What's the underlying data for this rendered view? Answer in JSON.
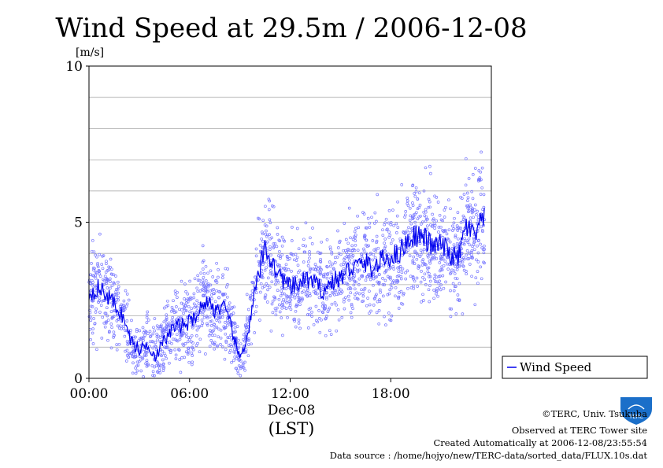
{
  "chart_data": {
    "type": "scatter",
    "title": "Wind Speed at 29.5m / 2006-12-08",
    "ylabel": "[m/s]",
    "ylim": [
      0,
      10
    ],
    "xlim_hours": [
      0,
      24
    ],
    "y_ticks": [
      "0",
      "5",
      "10"
    ],
    "x_ticks": [
      {
        "hour": 0,
        "label": "00:00"
      },
      {
        "hour": 6,
        "label": "06:00"
      },
      {
        "hour": 12,
        "label": "12:00"
      },
      {
        "hour": 18,
        "label": "18:00"
      }
    ],
    "date_label": "Dec-08",
    "timezone_label": "(LST)",
    "grid": true,
    "legend_position": "right",
    "series": [
      {
        "name": "Wind Speed",
        "color": "#0000ee",
        "scatter_color": "#7777ff",
        "x": [
          0,
          0.5,
          1,
          1.5,
          2,
          2.5,
          3,
          3.5,
          4,
          4.5,
          5,
          5.5,
          6,
          6.5,
          7,
          7.5,
          8,
          8.5,
          9,
          9.5,
          10,
          10.5,
          11,
          11.5,
          12,
          12.5,
          13,
          13.5,
          14,
          14.5,
          15,
          15.5,
          16,
          16.5,
          17,
          17.5,
          18,
          18.5,
          19,
          19.5,
          20,
          20.5,
          21,
          21.5,
          22,
          22.5,
          23,
          23.5
        ],
        "y": [
          2.7,
          2.9,
          2.7,
          2.4,
          2.0,
          1.2,
          0.9,
          1.1,
          0.7,
          1.2,
          1.6,
          1.7,
          1.8,
          2.1,
          2.5,
          2.2,
          2.3,
          1.6,
          0.6,
          1.5,
          3.0,
          4.2,
          3.6,
          3.2,
          2.9,
          3.0,
          3.2,
          3.0,
          2.8,
          3.1,
          3.2,
          3.5,
          3.6,
          3.7,
          3.5,
          3.8,
          3.9,
          4.0,
          4.4,
          4.6,
          4.5,
          4.2,
          4.3,
          4.0,
          3.8,
          4.9,
          4.5,
          5.1
        ]
      }
    ]
  },
  "credits": {
    "copyright": "©TERC, Univ. Tsukuba",
    "observed": "Observed at TERC Tower site",
    "created": "Created Automatically at 2006-12-08/23:55:54",
    "source": "Data source : /home/hojyo/new/TERC-data/sorted_data/FLUX.10s.dat"
  },
  "logo": {
    "text": "TERC",
    "color": "#1b6fc9"
  }
}
